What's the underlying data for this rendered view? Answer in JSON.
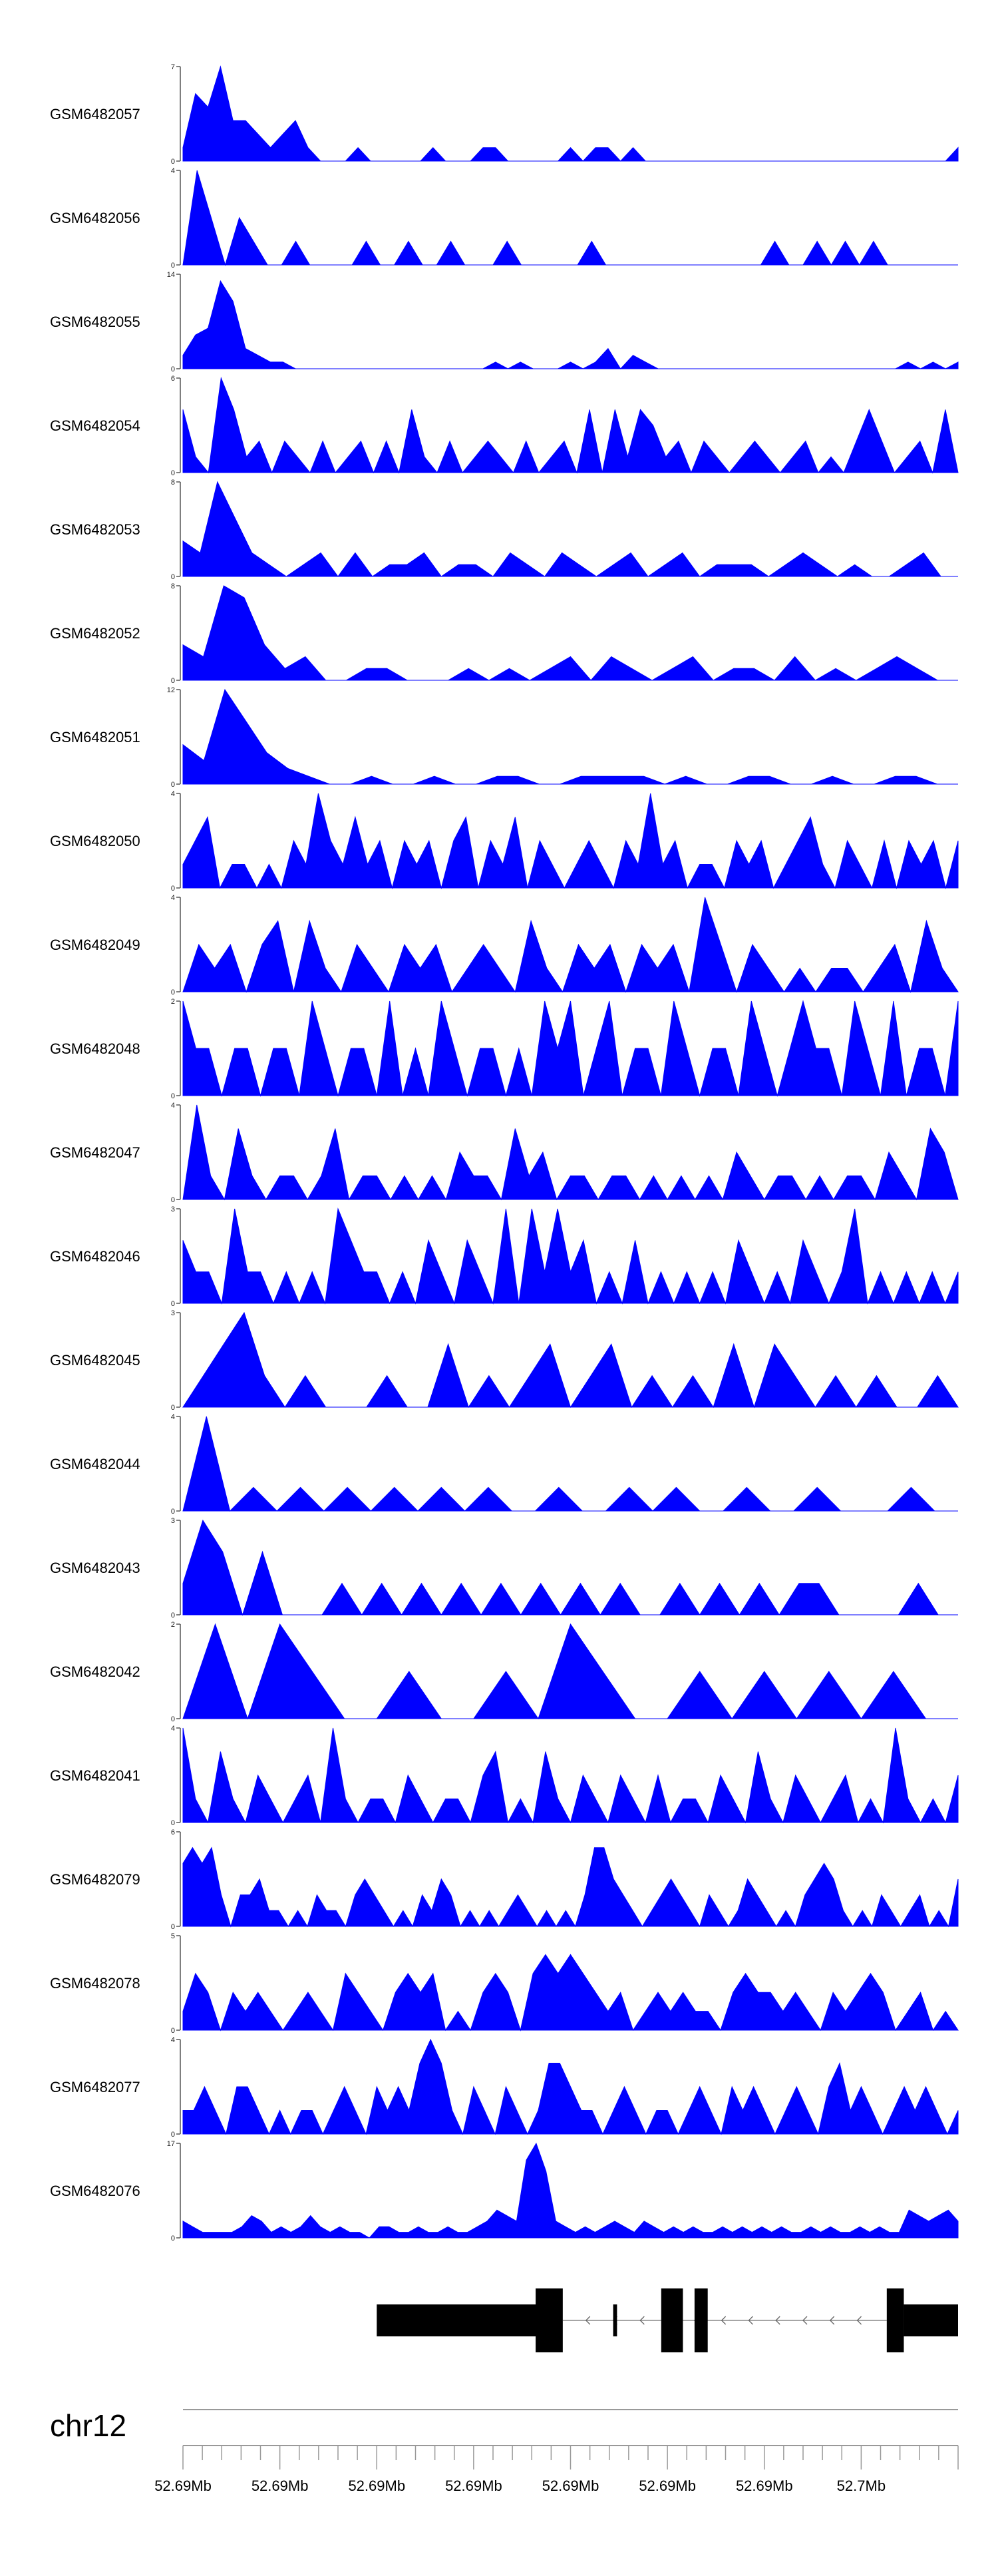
{
  "colors": {
    "fill": "#0000ff",
    "axis": "#555555",
    "gene": "#000000"
  },
  "chart_data": {
    "type": "area",
    "chromosome": "chr12",
    "x_tick_labels": [
      "52.69Mb",
      "52.69Mb",
      "52.69Mb",
      "52.69Mb",
      "52.69Mb",
      "52.69Mb",
      "52.69Mb",
      "52.7Mb"
    ],
    "series": [
      {
        "name": "GSM6482057",
        "ymax": 7,
        "profile": [
          1,
          5,
          4,
          7,
          3,
          3,
          2,
          1,
          2,
          3,
          1,
          0,
          0,
          0,
          1,
          0,
          0,
          0,
          0,
          0,
          1,
          0,
          0,
          0,
          1,
          1,
          0,
          0,
          0,
          0,
          0,
          1,
          0,
          1,
          1,
          0,
          1,
          0,
          0,
          0,
          0,
          0,
          0,
          0,
          0,
          0,
          0,
          0,
          0,
          0,
          0,
          0,
          0,
          0,
          0,
          0,
          0,
          0,
          0,
          0,
          0,
          0,
          1
        ]
      },
      {
        "name": "GSM6482056",
        "ymax": 4,
        "profile": [
          0,
          4,
          2,
          0,
          2,
          1,
          0,
          0,
          1,
          0,
          0,
          0,
          0,
          1,
          0,
          0,
          1,
          0,
          0,
          1,
          0,
          0,
          0,
          1,
          0,
          0,
          0,
          0,
          0,
          1,
          0,
          0,
          0,
          0,
          0,
          0,
          0,
          0,
          0,
          0,
          0,
          0,
          1,
          0,
          0,
          1,
          0,
          1,
          0,
          1,
          0,
          0,
          0,
          0,
          0,
          0
        ]
      },
      {
        "name": "GSM6482055",
        "ymax": 14,
        "profile": [
          2,
          5,
          6,
          13,
          10,
          3,
          2,
          1,
          1,
          0,
          0,
          0,
          0,
          0,
          0,
          0,
          0,
          0,
          0,
          0,
          0,
          0,
          0,
          0,
          0,
          1,
          0,
          1,
          0,
          0,
          0,
          1,
          0,
          1,
          3,
          0,
          2,
          1,
          0,
          0,
          0,
          0,
          0,
          0,
          0,
          0,
          0,
          0,
          0,
          0,
          0,
          0,
          0,
          0,
          0,
          0,
          0,
          0,
          1,
          0,
          1,
          0,
          1
        ]
      },
      {
        "name": "GSM6482054",
        "ymax": 6,
        "profile": [
          4,
          1,
          0,
          6,
          4,
          1,
          2,
          0,
          2,
          1,
          0,
          2,
          0,
          1,
          2,
          0,
          2,
          0,
          4,
          1,
          0,
          2,
          0,
          1,
          2,
          1,
          0,
          2,
          0,
          1,
          2,
          0,
          4,
          0,
          4,
          1,
          4,
          3,
          1,
          2,
          0,
          2,
          1,
          0,
          1,
          2,
          1,
          0,
          1,
          2,
          0,
          1,
          0,
          2,
          4,
          2,
          0,
          1,
          2,
          0,
          4,
          0
        ]
      },
      {
        "name": "GSM6482053",
        "ymax": 8,
        "profile": [
          3,
          2,
          8,
          5,
          2,
          1,
          0,
          1,
          2,
          0,
          2,
          0,
          1,
          1,
          2,
          0,
          1,
          1,
          0,
          2,
          1,
          0,
          2,
          1,
          0,
          1,
          2,
          0,
          1,
          2,
          0,
          1,
          1,
          1,
          0,
          1,
          2,
          1,
          0,
          1,
          0,
          0,
          1,
          2,
          0,
          0
        ]
      },
      {
        "name": "GSM6482052",
        "ymax": 8,
        "profile": [
          3,
          2,
          8,
          7,
          3,
          1,
          2,
          0,
          0,
          1,
          1,
          0,
          0,
          0,
          1,
          0,
          1,
          0,
          1,
          2,
          0,
          2,
          1,
          0,
          1,
          2,
          0,
          1,
          1,
          0,
          2,
          0,
          1,
          0,
          1,
          2,
          1,
          0,
          0
        ]
      },
      {
        "name": "GSM6482051",
        "ymax": 12,
        "profile": [
          5,
          3,
          12,
          8,
          4,
          2,
          1,
          0,
          0,
          1,
          0,
          0,
          1,
          0,
          0,
          1,
          1,
          0,
          0,
          1,
          1,
          1,
          1,
          0,
          1,
          0,
          0,
          1,
          1,
          0,
          0,
          1,
          0,
          0,
          1,
          1,
          0,
          0
        ]
      },
      {
        "name": "GSM6482050",
        "ymax": 4,
        "profile": [
          1,
          2,
          3,
          0,
          1,
          1,
          0,
          1,
          0,
          2,
          1,
          4,
          2,
          1,
          3,
          1,
          2,
          0,
          2,
          1,
          2,
          0,
          2,
          3,
          0,
          2,
          1,
          3,
          0,
          2,
          1,
          0,
          1,
          2,
          1,
          0,
          2,
          1,
          4,
          1,
          2,
          0,
          1,
          1,
          0,
          2,
          1,
          2,
          0,
          1,
          2,
          3,
          1,
          0,
          2,
          1,
          0,
          2,
          0,
          2,
          1,
          2,
          0,
          2
        ]
      },
      {
        "name": "GSM6482049",
        "ymax": 4,
        "profile": [
          0,
          2,
          1,
          2,
          0,
          2,
          3,
          0,
          3,
          1,
          0,
          2,
          1,
          0,
          2,
          1,
          2,
          0,
          1,
          2,
          1,
          0,
          3,
          1,
          0,
          2,
          1,
          2,
          0,
          2,
          1,
          2,
          0,
          4,
          2,
          0,
          2,
          1,
          0,
          1,
          0,
          1,
          1,
          0,
          1,
          2,
          0,
          3,
          1,
          0
        ]
      },
      {
        "name": "GSM6482048",
        "ymax": 2,
        "profile": [
          2,
          1,
          1,
          0,
          1,
          1,
          0,
          1,
          1,
          0,
          2,
          1,
          0,
          1,
          1,
          0,
          2,
          0,
          1,
          0,
          2,
          1,
          0,
          1,
          1,
          0,
          1,
          0,
          2,
          1,
          2,
          0,
          1,
          2,
          0,
          1,
          1,
          0,
          2,
          1,
          0,
          1,
          1,
          0,
          2,
          1,
          0,
          1,
          2,
          1,
          1,
          0,
          2,
          1,
          0,
          2,
          0,
          1,
          1,
          0,
          2
        ]
      },
      {
        "name": "GSM6482047",
        "ymax": 4,
        "profile": [
          0,
          4,
          1,
          0,
          3,
          1,
          0,
          1,
          1,
          0,
          1,
          3,
          0,
          1,
          1,
          0,
          1,
          0,
          1,
          0,
          2,
          1,
          1,
          0,
          3,
          1,
          2,
          0,
          1,
          1,
          0,
          1,
          1,
          0,
          1,
          0,
          1,
          0,
          1,
          0,
          2,
          1,
          0,
          1,
          1,
          0,
          1,
          0,
          1,
          1,
          0,
          2,
          1,
          0,
          3,
          2,
          0
        ]
      },
      {
        "name": "GSM6482046",
        "ymax": 3,
        "profile": [
          2,
          1,
          1,
          0,
          3,
          1,
          1,
          0,
          1,
          0,
          1,
          0,
          3,
          2,
          1,
          1,
          0,
          1,
          0,
          2,
          1,
          0,
          2,
          1,
          0,
          3,
          0,
          3,
          1,
          3,
          1,
          2,
          0,
          1,
          0,
          2,
          0,
          1,
          0,
          1,
          0,
          1,
          0,
          2,
          1,
          0,
          1,
          0,
          2,
          1,
          0,
          1,
          3,
          0,
          1,
          0,
          1,
          0,
          1,
          0,
          1
        ]
      },
      {
        "name": "GSM6482045",
        "ymax": 3,
        "profile": [
          0,
          1,
          2,
          3,
          1,
          0,
          1,
          0,
          0,
          0,
          1,
          0,
          0,
          2,
          0,
          1,
          0,
          1,
          2,
          0,
          1,
          2,
          0,
          1,
          0,
          1,
          0,
          2,
          0,
          2,
          1,
          0,
          1,
          0,
          1,
          0,
          0,
          1,
          0
        ]
      },
      {
        "name": "GSM6482044",
        "ymax": 4,
        "profile": [
          0,
          4,
          0,
          1,
          0,
          1,
          0,
          1,
          0,
          1,
          0,
          1,
          0,
          1,
          0,
          0,
          1,
          0,
          0,
          1,
          0,
          1,
          0,
          0,
          1,
          0,
          0,
          1,
          0,
          0,
          0,
          1,
          0,
          0
        ]
      },
      {
        "name": "GSM6482043",
        "ymax": 3,
        "profile": [
          1,
          3,
          2,
          0,
          2,
          0,
          0,
          0,
          1,
          0,
          1,
          0,
          1,
          0,
          1,
          0,
          1,
          0,
          1,
          0,
          1,
          0,
          1,
          0,
          0,
          1,
          0,
          1,
          0,
          1,
          0,
          1,
          1,
          0,
          0,
          0,
          0,
          1,
          0,
          0
        ]
      },
      {
        "name": "GSM6482042",
        "ymax": 2,
        "profile": [
          0,
          2,
          0,
          2,
          1,
          0,
          0,
          1,
          0,
          0,
          1,
          0,
          2,
          1,
          0,
          0,
          1,
          0,
          1,
          0,
          1,
          0,
          1,
          0,
          0
        ]
      },
      {
        "name": "GSM6482041",
        "ymax": 4,
        "profile": [
          4,
          1,
          0,
          3,
          1,
          0,
          2,
          1,
          0,
          1,
          2,
          0,
          4,
          1,
          0,
          1,
          1,
          0,
          2,
          1,
          0,
          1,
          1,
          0,
          2,
          3,
          0,
          1,
          0,
          3,
          1,
          0,
          2,
          1,
          0,
          2,
          1,
          0,
          2,
          0,
          1,
          1,
          0,
          2,
          1,
          0,
          3,
          1,
          0,
          2,
          1,
          0,
          1,
          2,
          0,
          1,
          0,
          4,
          1,
          0,
          1,
          0,
          2
        ]
      },
      {
        "name": "GSM6482079",
        "ymax": 6,
        "profile": [
          4,
          5,
          4,
          5,
          2,
          0,
          2,
          2,
          3,
          1,
          1,
          0,
          1,
          0,
          2,
          1,
          1,
          0,
          2,
          3,
          2,
          1,
          0,
          1,
          0,
          2,
          1,
          3,
          2,
          0,
          1,
          0,
          1,
          0,
          1,
          2,
          1,
          0,
          1,
          0,
          1,
          0,
          2,
          5,
          5,
          3,
          2,
          1,
          0,
          1,
          2,
          3,
          2,
          1,
          0,
          2,
          1,
          0,
          1,
          3,
          2,
          1,
          0,
          1,
          0,
          2,
          3,
          4,
          3,
          1,
          0,
          1,
          0,
          2,
          1,
          0,
          1,
          2,
          0,
          1,
          0,
          3
        ]
      },
      {
        "name": "GSM6482078",
        "ymax": 5,
        "profile": [
          1,
          3,
          2,
          0,
          2,
          1,
          2,
          1,
          0,
          1,
          2,
          1,
          0,
          3,
          2,
          1,
          0,
          2,
          3,
          2,
          3,
          0,
          1,
          0,
          2,
          3,
          2,
          0,
          3,
          4,
          3,
          4,
          3,
          2,
          1,
          2,
          0,
          1,
          2,
          1,
          2,
          1,
          1,
          0,
          2,
          3,
          2,
          2,
          1,
          2,
          1,
          0,
          2,
          1,
          2,
          3,
          2,
          0,
          1,
          2,
          0,
          1,
          0
        ]
      },
      {
        "name": "GSM6482077",
        "ymax": 4,
        "profile": [
          1,
          1,
          2,
          1,
          0,
          2,
          2,
          1,
          0,
          1,
          0,
          1,
          1,
          0,
          1,
          2,
          1,
          0,
          2,
          1,
          2,
          1,
          3,
          4,
          3,
          1,
          0,
          2,
          1,
          0,
          2,
          1,
          0,
          1,
          3,
          3,
          2,
          1,
          1,
          0,
          1,
          2,
          1,
          0,
          1,
          1,
          0,
          1,
          2,
          1,
          0,
          2,
          1,
          2,
          1,
          0,
          1,
          2,
          1,
          0,
          2,
          3,
          1,
          2,
          1,
          0,
          1,
          2,
          1,
          2,
          1,
          0,
          1
        ]
      },
      {
        "name": "GSM6482076",
        "ymax": 17,
        "profile": [
          3,
          2,
          1,
          1,
          1,
          1,
          2,
          4,
          3,
          1,
          2,
          1,
          2,
          4,
          2,
          1,
          2,
          1,
          1,
          0,
          2,
          2,
          1,
          1,
          2,
          1,
          1,
          2,
          1,
          1,
          2,
          3,
          5,
          4,
          3,
          14,
          17,
          12,
          3,
          2,
          1,
          2,
          1,
          2,
          3,
          2,
          1,
          3,
          2,
          1,
          2,
          1,
          2,
          1,
          1,
          2,
          1,
          2,
          1,
          2,
          1,
          2,
          1,
          1,
          2,
          1,
          2,
          1,
          1,
          2,
          1,
          2,
          1,
          1,
          5,
          4,
          3,
          4,
          5,
          3
        ]
      }
    ]
  },
  "gene_model": {
    "strand": "minus",
    "exons": [
      [
        0.25,
        0.465,
        "thin"
      ],
      [
        0.455,
        0.49,
        "thick"
      ],
      [
        0.555,
        0.56,
        "thin"
      ],
      [
        0.617,
        0.645,
        "thick"
      ],
      [
        0.66,
        0.677,
        "thick"
      ],
      [
        0.908,
        0.93,
        "thick"
      ],
      [
        0.93,
        1.0,
        "thin"
      ]
    ],
    "intron": [
      0.49,
      0.908
    ]
  }
}
